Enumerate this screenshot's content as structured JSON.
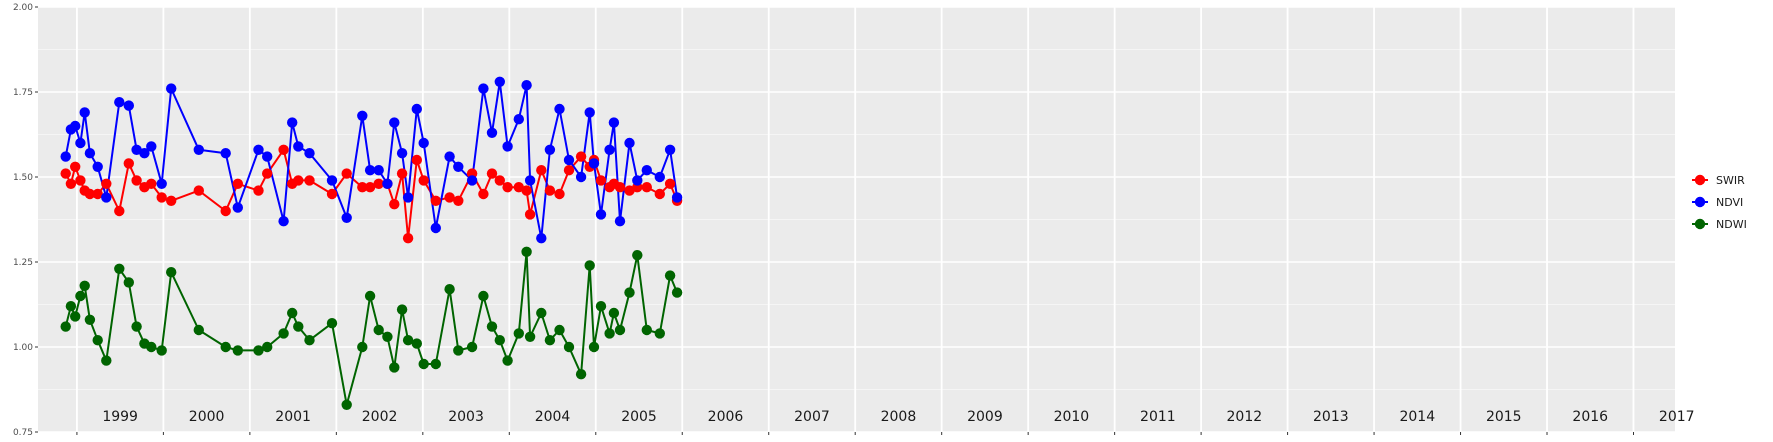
{
  "chart_data": {
    "type": "line",
    "title": "",
    "xlabel": "",
    "ylabel": "",
    "ylim": [
      0.75,
      2.0
    ],
    "y_ticks": [
      "0.75",
      "1.00",
      "1.25",
      "1.50",
      "1.75",
      "2.00"
    ],
    "xlim": [
      1998.55,
      2017.48
    ],
    "years": [
      "1999",
      "2000",
      "2001",
      "2002",
      "2003",
      "2004",
      "2005",
      "2006",
      "2007",
      "2008",
      "2009",
      "2010",
      "2011",
      "2012",
      "2013",
      "2014",
      "2015",
      "2016",
      "2017"
    ],
    "grid": true,
    "legend_position": "right",
    "colors": {
      "SWIR": "#ff0000",
      "NDVI": "#0000ff",
      "NDWI": "#006400",
      "panel_bg": "#ebebeb",
      "grid": "#ffffff"
    },
    "series": [
      {
        "name": "SWIR",
        "x": [
          1998.87,
          1998.93,
          1998.98,
          1999.04,
          1999.09,
          1999.15,
          1999.24,
          1999.34,
          1999.49,
          1999.6,
          1999.69,
          1999.78,
          1999.86,
          1999.98,
          2000.09,
          2000.41,
          2000.72,
          2000.86,
          2001.1,
          2001.2,
          2001.39,
          2001.49,
          2001.56,
          2001.69,
          2001.95,
          2002.12,
          2002.3,
          2002.39,
          2002.49,
          2002.59,
          2002.67,
          2002.76,
          2002.83,
          2002.93,
          2003.01,
          2003.15,
          2003.31,
          2003.41,
          2003.57,
          2003.7,
          2003.8,
          2003.89,
          2003.98,
          2004.11,
          2004.2,
          2004.24,
          2004.37,
          2004.47,
          2004.58,
          2004.69,
          2004.83,
          2004.93,
          2004.98,
          2005.06,
          2005.16,
          2005.21,
          2005.28,
          2005.39,
          2005.48,
          2005.59,
          2005.74,
          2005.86,
          2005.94
        ],
        "values": [
          1.51,
          1.48,
          1.53,
          1.49,
          1.46,
          1.45,
          1.45,
          1.48,
          1.4,
          1.54,
          1.49,
          1.47,
          1.48,
          1.44,
          1.43,
          1.46,
          1.4,
          1.48,
          1.46,
          1.51,
          1.58,
          1.48,
          1.49,
          1.49,
          1.45,
          1.51,
          1.47,
          1.47,
          1.48,
          1.48,
          1.42,
          1.51,
          1.32,
          1.55,
          1.49,
          1.43,
          1.44,
          1.43,
          1.51,
          1.45,
          1.51,
          1.49,
          1.47,
          1.47,
          1.46,
          1.39,
          1.52,
          1.46,
          1.45,
          1.52,
          1.56,
          1.53,
          1.55,
          1.49,
          1.47,
          1.48,
          1.47,
          1.46,
          1.47,
          1.47,
          1.45,
          1.48,
          1.43
        ]
      },
      {
        "name": "NDVI",
        "x": [
          1998.87,
          1998.93,
          1998.98,
          1999.04,
          1999.09,
          1999.15,
          1999.24,
          1999.34,
          1999.49,
          1999.6,
          1999.69,
          1999.78,
          1999.86,
          1999.98,
          2000.09,
          2000.41,
          2000.72,
          2000.86,
          2001.1,
          2001.2,
          2001.39,
          2001.49,
          2001.56,
          2001.69,
          2001.95,
          2002.12,
          2002.3,
          2002.39,
          2002.49,
          2002.59,
          2002.67,
          2002.76,
          2002.83,
          2002.93,
          2003.01,
          2003.15,
          2003.31,
          2003.41,
          2003.57,
          2003.7,
          2003.8,
          2003.89,
          2003.98,
          2004.11,
          2004.2,
          2004.24,
          2004.37,
          2004.47,
          2004.58,
          2004.69,
          2004.83,
          2004.93,
          2004.98,
          2005.06,
          2005.16,
          2005.21,
          2005.28,
          2005.39,
          2005.48,
          2005.59,
          2005.74,
          2005.86,
          2005.94
        ],
        "values": [
          1.56,
          1.64,
          1.65,
          1.6,
          1.69,
          1.57,
          1.53,
          1.44,
          1.72,
          1.71,
          1.58,
          1.57,
          1.59,
          1.48,
          1.76,
          1.58,
          1.57,
          1.41,
          1.58,
          1.56,
          1.37,
          1.66,
          1.59,
          1.57,
          1.49,
          1.38,
          1.68,
          1.52,
          1.52,
          1.48,
          1.66,
          1.57,
          1.44,
          1.7,
          1.6,
          1.35,
          1.56,
          1.53,
          1.49,
          1.76,
          1.63,
          1.78,
          1.59,
          1.67,
          1.77,
          1.49,
          1.32,
          1.58,
          1.7,
          1.55,
          1.5,
          1.69,
          1.54,
          1.39,
          1.58,
          1.66,
          1.37,
          1.6,
          1.49,
          1.52,
          1.5,
          1.58,
          1.44
        ]
      },
      {
        "name": "NDWI",
        "x": [
          1998.87,
          1998.93,
          1998.98,
          1999.04,
          1999.09,
          1999.15,
          1999.24,
          1999.34,
          1999.49,
          1999.6,
          1999.69,
          1999.78,
          1999.86,
          1999.98,
          2000.09,
          2000.41,
          2000.72,
          2000.86,
          2001.1,
          2001.2,
          2001.39,
          2001.49,
          2001.56,
          2001.69,
          2001.95,
          2002.12,
          2002.3,
          2002.39,
          2002.49,
          2002.59,
          2002.67,
          2002.76,
          2002.83,
          2002.93,
          2003.01,
          2003.15,
          2003.31,
          2003.41,
          2003.57,
          2003.7,
          2003.8,
          2003.89,
          2003.98,
          2004.11,
          2004.2,
          2004.24,
          2004.37,
          2004.47,
          2004.58,
          2004.69,
          2004.83,
          2004.93,
          2004.98,
          2005.06,
          2005.16,
          2005.21,
          2005.28,
          2005.39,
          2005.48,
          2005.59,
          2005.74,
          2005.86,
          2005.94
        ],
        "values": [
          1.06,
          1.12,
          1.09,
          1.15,
          1.18,
          1.08,
          1.02,
          0.96,
          1.23,
          1.19,
          1.06,
          1.01,
          1.0,
          0.99,
          1.22,
          1.05,
          1.0,
          0.99,
          0.99,
          1.0,
          1.04,
          1.1,
          1.06,
          1.02,
          1.07,
          0.83,
          1.0,
          1.15,
          1.05,
          1.03,
          0.94,
          1.11,
          1.02,
          1.01,
          0.95,
          0.95,
          1.17,
          0.99,
          1.0,
          1.15,
          1.06,
          1.02,
          0.96,
          1.04,
          1.28,
          1.03,
          1.1,
          1.02,
          1.05,
          1.0,
          0.92,
          1.24,
          1.0,
          1.12,
          1.04,
          1.1,
          1.05,
          1.16,
          1.27,
          1.05,
          1.04,
          1.21,
          1.16
        ]
      }
    ]
  }
}
